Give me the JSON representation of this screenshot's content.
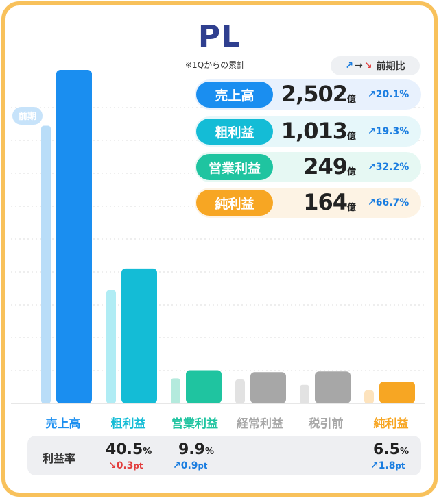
{
  "title": "PL",
  "subtitle": "※1Qからの累計",
  "legend": {
    "up": "↗",
    "arrow": "→",
    "down": "↘",
    "label": "前期比"
  },
  "prev_label": "前期",
  "colors": {
    "sales": "#1a8ef0",
    "gross": "#14bcd6",
    "operating": "#1fc4a0",
    "ordinary": "#a7a7a7",
    "pretax": "#a7a7a7",
    "net": "#f7a623",
    "up": "#1a7de0",
    "down": "#e23c3c",
    "border": "#f8c15b"
  },
  "summary": [
    {
      "label": "売上高",
      "value": "2,502",
      "unit": "億",
      "change": "↗20.1%",
      "color": "#1a8ef0",
      "bg": "#e8f1fd"
    },
    {
      "label": "粗利益",
      "value": "1,013",
      "unit": "億",
      "change": "↗19.3%",
      "color": "#14bcd6",
      "bg": "#e6f7fa"
    },
    {
      "label": "営業利益",
      "value": "249",
      "unit": "億",
      "change": "↗32.2%",
      "color": "#1fc4a0",
      "bg": "#e6f8f3"
    },
    {
      "label": "純利益",
      "value": "164",
      "unit": "億",
      "change": "↗66.7%",
      "color": "#f7a623",
      "bg": "#fdf3e4"
    }
  ],
  "margin": {
    "title": "利益率",
    "items": [
      {
        "value": "40.5",
        "unit": "%",
        "change": "↘0.3",
        "change_unit": "pt",
        "dir": "down"
      },
      {
        "value": "9.9",
        "unit": "%",
        "change": "↗0.9",
        "change_unit": "pt",
        "dir": "up"
      },
      {
        "value": "6.5",
        "unit": "%",
        "change": "↗1.8",
        "change_unit": "pt",
        "dir": "up"
      }
    ]
  },
  "chart_data": {
    "type": "bar",
    "categories": [
      "売上高",
      "粗利益",
      "営業利益",
      "経常利益",
      "税引前",
      "純利益"
    ],
    "series": [
      {
        "name": "前期",
        "values": [
          2083,
          849,
          188,
          180,
          140,
          98
        ]
      },
      {
        "values": [
          2502,
          1013,
          249,
          235,
          240,
          164
        ]
      }
    ],
    "ylim": [
      0,
      2502
    ],
    "grid": true
  }
}
